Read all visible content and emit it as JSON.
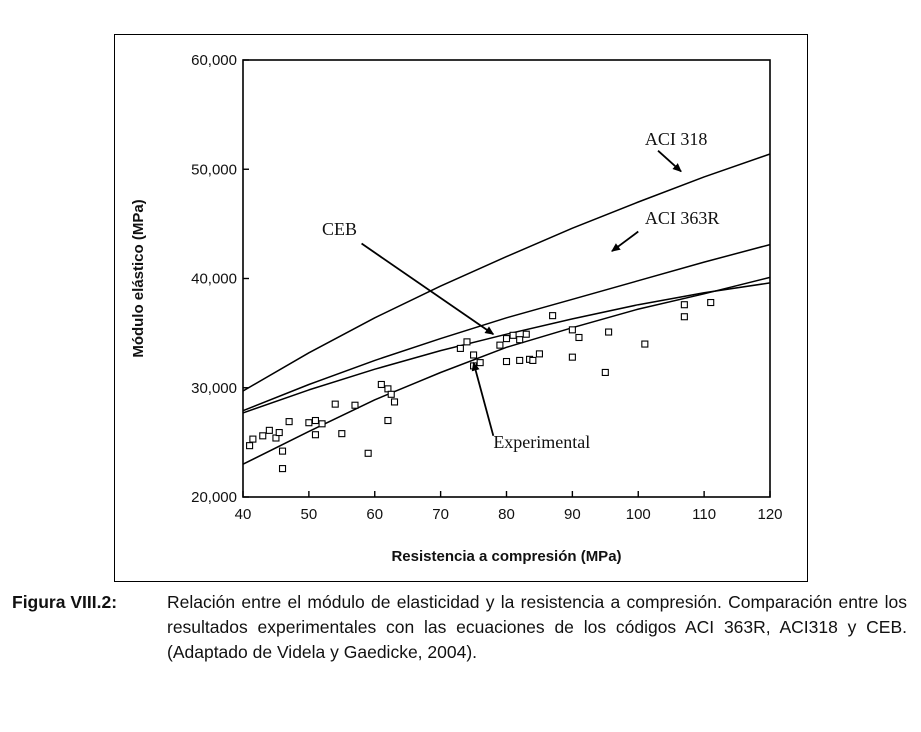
{
  "chart_data": {
    "type": "line",
    "xlabel": "Resistencia a compresión (MPa)",
    "ylabel": "Módulo elástico (MPa)",
    "xlim": [
      40,
      120
    ],
    "ylim": [
      20000,
      60000
    ],
    "x_ticks": [
      40,
      50,
      60,
      70,
      80,
      90,
      100,
      110,
      120
    ],
    "x_tick_labels": [
      "40",
      "50",
      "60",
      "70",
      "80",
      "90",
      "100",
      "110",
      "120"
    ],
    "y_ticks": [
      20000,
      30000,
      40000,
      50000,
      60000
    ],
    "y_tick_labels": [
      "20,000",
      "30,000",
      "40,000",
      "50,000",
      "60,000"
    ],
    "grid": false,
    "series": [
      {
        "name": "ACI 318",
        "x": [
          40,
          50,
          60,
          70,
          80,
          90,
          100,
          110,
          120
        ],
        "y": [
          29700,
          33200,
          36400,
          39300,
          42000,
          44600,
          47000,
          49300,
          51400
        ]
      },
      {
        "name": "ACI 363R",
        "x": [
          40,
          50,
          60,
          70,
          80,
          90,
          100,
          110,
          120
        ],
        "y": [
          27900,
          30300,
          32500,
          34500,
          36400,
          38100,
          39800,
          41500,
          43100
        ]
      },
      {
        "name": "CEB",
        "x": [
          40,
          50,
          60,
          70,
          80,
          90,
          100,
          110,
          120
        ],
        "y": [
          27700,
          29800,
          31700,
          33400,
          34900,
          36300,
          37600,
          38700,
          39600
        ]
      },
      {
        "name": "Experimental",
        "x": [
          40,
          50,
          60,
          70,
          80,
          90,
          100,
          110,
          120
        ],
        "y": [
          23000,
          26000,
          28900,
          31400,
          33700,
          35500,
          37200,
          38600,
          40100
        ]
      }
    ],
    "scatter_points": [
      [
        41,
        24700
      ],
      [
        41.5,
        25300
      ],
      [
        43,
        25600
      ],
      [
        44,
        26100
      ],
      [
        45,
        25400
      ],
      [
        45.5,
        25900
      ],
      [
        46,
        24200
      ],
      [
        46,
        22600
      ],
      [
        47,
        26900
      ],
      [
        50,
        26800
      ],
      [
        51,
        27000
      ],
      [
        51,
        25700
      ],
      [
        52,
        26700
      ],
      [
        54,
        28500
      ],
      [
        55,
        25800
      ],
      [
        57,
        28400
      ],
      [
        59,
        24000
      ],
      [
        61,
        30300
      ],
      [
        62,
        29900
      ],
      [
        62,
        27000
      ],
      [
        62.5,
        29400
      ],
      [
        63,
        28700
      ],
      [
        73,
        33600
      ],
      [
        74,
        34200
      ],
      [
        75,
        33000
      ],
      [
        75,
        32000
      ],
      [
        76,
        32300
      ],
      [
        79,
        33900
      ],
      [
        80,
        34500
      ],
      [
        80,
        32400
      ],
      [
        81,
        34800
      ],
      [
        82,
        34400
      ],
      [
        82,
        32500
      ],
      [
        83,
        34900
      ],
      [
        83.5,
        32600
      ],
      [
        84,
        32500
      ],
      [
        85,
        33100
      ],
      [
        87,
        36600
      ],
      [
        90,
        32800
      ],
      [
        90,
        35300
      ],
      [
        91,
        34600
      ],
      [
        95,
        31400
      ],
      [
        95.5,
        35100
      ],
      [
        101,
        34000
      ],
      [
        107,
        37600
      ],
      [
        107,
        36500
      ],
      [
        111,
        37800
      ]
    ],
    "annotations": [
      {
        "text": "ACI 318",
        "x": 101,
        "y": 52200
      },
      {
        "text": "ACI 363R",
        "x": 101,
        "y": 45000
      },
      {
        "text": "CEB",
        "x": 52,
        "y": 44000
      },
      {
        "text": "Experimental",
        "x": 78,
        "y": 24500
      }
    ]
  },
  "caption": {
    "label": "Figura VIII.2:",
    "text": "Relación entre el módulo de elasticidad y la resistencia a compresión. Comparación entre los resultados experimentales con las ecuaciones de los códigos ACI 363R, ACI318 y CEB. (Adaptado de Videla y Gaedicke, 2004)."
  }
}
